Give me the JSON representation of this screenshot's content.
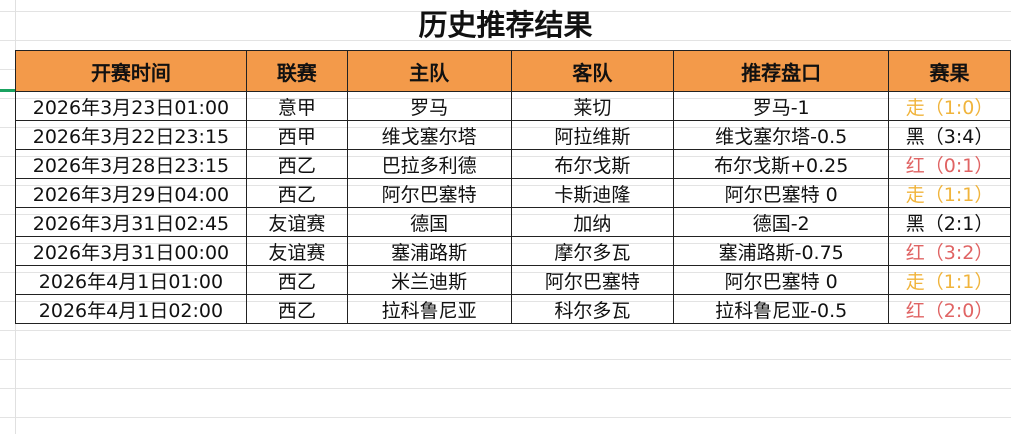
{
  "title": "历史推荐结果",
  "headers": [
    "开赛时间",
    "联赛",
    "主队",
    "客队",
    "推荐盘口",
    "赛果"
  ],
  "result_colors": {
    "走": "#f0b43c",
    "红": "#e06464",
    "黑": "#111111"
  },
  "rows": [
    {
      "time": "2026年3月23日01:00",
      "league": "意甲",
      "home": "罗马",
      "away": "莱切",
      "pick": "罗马-1",
      "result": "走（1:0）",
      "type": "走"
    },
    {
      "time": "2026年3月22日23:15",
      "league": "西甲",
      "home": "维戈塞尔塔",
      "away": "阿拉维斯",
      "pick": "维戈塞尔塔-0.5",
      "result": "黑（3:4）",
      "type": "黑"
    },
    {
      "time": "2026年3月28日23:15",
      "league": "西乙",
      "home": "巴拉多利德",
      "away": "布尔戈斯",
      "pick": "布尔戈斯+0.25",
      "result": "红（0:1）",
      "type": "红"
    },
    {
      "time": "2026年3月29日04:00",
      "league": "西乙",
      "home": "阿尔巴塞特",
      "away": "卡斯迪隆",
      "pick": "阿尔巴塞特 0",
      "result": "走（1:1）",
      "type": "走"
    },
    {
      "time": "2026年3月31日02:45",
      "league": "友谊赛",
      "home": "德国",
      "away": "加纳",
      "pick": "德国-2",
      "result": "黑（2:1）",
      "type": "黑"
    },
    {
      "time": "2026年3月31日00:00",
      "league": "友谊赛",
      "home": "塞浦路斯",
      "away": "摩尔多瓦",
      "pick": "塞浦路斯-0.75",
      "result": "红（3:2）",
      "type": "红"
    },
    {
      "time": "2026年4月1日01:00",
      "league": "西乙",
      "home": "米兰迪斯",
      "away": "阿尔巴塞特",
      "pick": "阿尔巴塞特 0",
      "result": "走（1:1）",
      "type": "走"
    },
    {
      "time": "2026年4月1日02:00",
      "league": "西乙",
      "home": "拉科鲁尼亚",
      "away": "科尔多瓦",
      "pick": "拉科鲁尼亚-0.5",
      "result": "红（2:0）",
      "type": "红"
    }
  ]
}
